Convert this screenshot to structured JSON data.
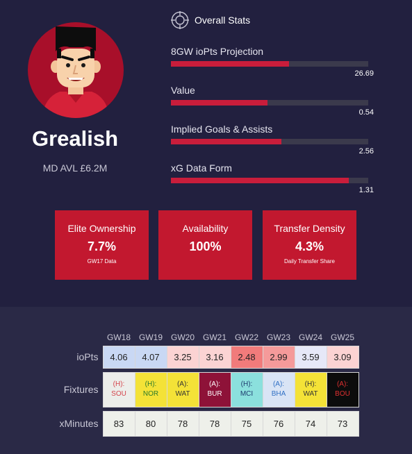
{
  "player": {
    "name": "Grealish",
    "meta": "MD AVL £6.2M"
  },
  "overall": {
    "title": "Overall Stats",
    "stats": [
      {
        "label": "8GW ioPts Projection",
        "value": "26.69",
        "fill": 0.6
      },
      {
        "label": "Value",
        "value": "0.54",
        "fill": 0.49
      },
      {
        "label": "Implied Goals & Assists",
        "value": "2.56",
        "fill": 0.56
      },
      {
        "label": "xG Data Form",
        "value": "1.31",
        "fill": 0.9
      }
    ]
  },
  "cards": [
    {
      "title": "Elite Ownership",
      "value": "7.7%",
      "sub": "GW17 Data"
    },
    {
      "title": "Availability",
      "value": "100%",
      "sub": ""
    },
    {
      "title": "Transfer Density",
      "value": "4.3%",
      "sub": "Daily Transfer Share"
    }
  ],
  "table": {
    "gameweeks": [
      "GW18",
      "GW19",
      "GW20",
      "GW21",
      "GW22",
      "GW23",
      "GW24",
      "GW25"
    ],
    "row_labels": {
      "iopts": "ioPts",
      "fixtures": "Fixtures",
      "xminutes": "xMinutes"
    },
    "iopts": [
      {
        "value": "4.06",
        "bg": "#c9d8f4"
      },
      {
        "value": "4.07",
        "bg": "#c9d8f4"
      },
      {
        "value": "3.25",
        "bg": "#fbd3d3"
      },
      {
        "value": "3.16",
        "bg": "#fbd3d3"
      },
      {
        "value": "2.48",
        "bg": "#f17b7b"
      },
      {
        "value": "2.99",
        "bg": "#f59a9a"
      },
      {
        "value": "3.59",
        "bg": "#e6e8f8"
      },
      {
        "value": "3.09",
        "bg": "#fbd3d3"
      }
    ],
    "fixtures": [
      {
        "venue": "(H):",
        "team": "SOU",
        "bg": "#ecedea",
        "fg": "#d4434b"
      },
      {
        "venue": "(H):",
        "team": "NOR",
        "bg": "#f4e237",
        "fg": "#2b7a2b"
      },
      {
        "venue": "(A):",
        "team": "WAT",
        "bg": "#f4e237",
        "fg": "#333333"
      },
      {
        "venue": "(A):",
        "team": "BUR",
        "bg": "#8e1238",
        "fg": "#ffffff"
      },
      {
        "venue": "(H):",
        "team": "MCI",
        "bg": "#8be0dd",
        "fg": "#1d3a6e"
      },
      {
        "venue": "(A):",
        "team": "BHA",
        "bg": "#d9e4f5",
        "fg": "#2f6fc4"
      },
      {
        "venue": "(H):",
        "team": "WAT",
        "bg": "#f4e237",
        "fg": "#333333"
      },
      {
        "venue": "(A):",
        "team": "BOU",
        "bg": "#0c0c0c",
        "fg": "#e03030"
      }
    ],
    "xminutes": [
      "83",
      "80",
      "78",
      "78",
      "75",
      "76",
      "74",
      "73"
    ]
  },
  "colors": {
    "bg_top": "#22203f",
    "bg_bottom": "#2a2946",
    "accent": "#c2182f",
    "bar_track": "#3b3a4c",
    "bar_fill": "#c91d3b"
  },
  "icons": {
    "avatar": "player-avatar-illustration",
    "stats": "crosshair-icon"
  }
}
